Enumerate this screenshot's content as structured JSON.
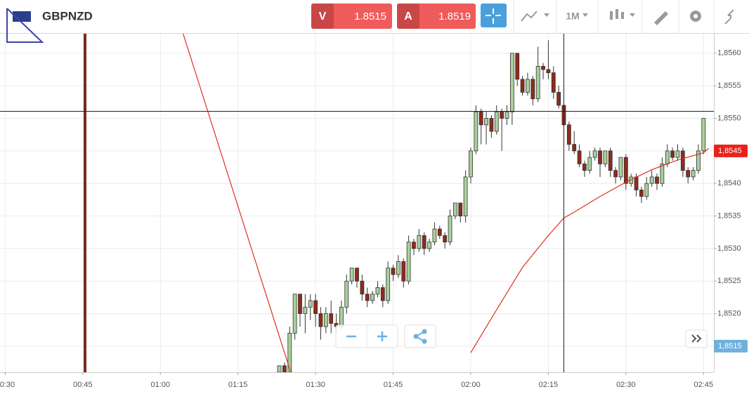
{
  "toolbar": {
    "symbol": "GBPNZD",
    "sell_label": "V",
    "sell_price": "1.8515",
    "buy_label": "A",
    "buy_price": "1.8519",
    "timeframe": "1M"
  },
  "chart_data": {
    "type": "candlestick",
    "x": [
      "01:23",
      "01:24",
      "01:25",
      "01:26",
      "01:27",
      "01:28",
      "01:29",
      "01:30",
      "01:31",
      "01:32",
      "01:33",
      "01:34",
      "01:35",
      "01:36",
      "01:37",
      "01:38",
      "01:39",
      "01:40",
      "01:41",
      "01:42",
      "01:43",
      "01:44",
      "01:45",
      "01:46",
      "01:47",
      "01:48",
      "01:49",
      "01:50",
      "01:51",
      "01:52",
      "01:53",
      "01:54",
      "01:55",
      "01:56",
      "01:57",
      "01:58",
      "01:59",
      "02:00",
      "02:01",
      "02:02",
      "02:03",
      "02:04",
      "02:05",
      "02:06",
      "02:07",
      "02:08",
      "02:09",
      "02:10",
      "02:11",
      "02:12",
      "02:13",
      "02:14",
      "02:15",
      "02:16",
      "02:17",
      "02:18",
      "02:19",
      "02:20",
      "02:21",
      "02:22",
      "02:23",
      "02:24",
      "02:25",
      "02:26",
      "02:27",
      "02:28",
      "02:29",
      "02:30",
      "02:31",
      "02:32",
      "02:33",
      "02:34",
      "02:35",
      "02:36",
      "02:37",
      "02:38",
      "02:39",
      "02:40",
      "02:41",
      "02:42",
      "02:43",
      "02:44",
      "02:45"
    ],
    "open": [
      1.8511,
      1.8512,
      1.8511,
      1.8517,
      1.8523,
      1.852,
      1.8521,
      1.8522,
      1.852,
      1.8518,
      1.852,
      1.85185,
      1.8518,
      1.8521,
      1.8525,
      1.8527,
      1.8525,
      1.8523,
      1.8522,
      1.8523,
      1.8524,
      1.8522,
      1.8527,
      1.8526,
      1.8528,
      1.8525,
      1.8531,
      1.853,
      1.8532,
      1.853,
      1.8531,
      1.8533,
      1.8532,
      1.8531,
      1.8535,
      1.8537,
      1.8535,
      1.8541,
      1.8545,
      1.8551,
      1.8549,
      1.855,
      1.8548,
      1.8551,
      1.855,
      1.8551,
      1.856,
      1.8556,
      1.8554,
      1.8556,
      1.8553,
      1.8558,
      1.85575,
      1.8557,
      1.8554,
      1.8552,
      1.8549,
      1.8546,
      1.8545,
      1.8543,
      1.8542,
      1.8544,
      1.8545,
      1.8543,
      1.8545,
      1.8542,
      1.8541,
      1.8544,
      1.854,
      1.8541,
      1.8539,
      1.8538,
      1.854,
      1.8541,
      1.854,
      1.8543,
      1.8545,
      1.8544,
      1.8545,
      1.8542,
      1.8541,
      1.8542,
      1.8545
    ],
    "high": [
      1.8512,
      1.85125,
      1.8518,
      1.8523,
      1.8523,
      1.8523,
      1.8523,
      1.8523,
      1.8521,
      1.8521,
      1.8522,
      1.852,
      1.8522,
      1.8526,
      1.8527,
      1.8527,
      1.8526,
      1.8524,
      1.85235,
      1.8525,
      1.85245,
      1.8528,
      1.85275,
      1.8529,
      1.85285,
      1.8532,
      1.85315,
      1.8533,
      1.85325,
      1.85315,
      1.8534,
      1.85335,
      1.85325,
      1.8536,
      1.8537,
      1.8537,
      1.8542,
      1.85455,
      1.8552,
      1.85515,
      1.8551,
      1.85505,
      1.8552,
      1.85515,
      1.8552,
      1.856,
      1.856,
      1.85565,
      1.8557,
      1.85565,
      1.8561,
      1.85585,
      1.8562,
      1.8558,
      1.8555,
      1.8553,
      1.85495,
      1.8548,
      1.8546,
      1.85435,
      1.8545,
      1.85455,
      1.85455,
      1.8545,
      1.85455,
      1.85425,
      1.8544,
      1.85445,
      1.85415,
      1.85415,
      1.85395,
      1.8541,
      1.8542,
      1.85415,
      1.8544,
      1.8546,
      1.85455,
      1.8546,
      1.85455,
      1.85425,
      1.85425,
      1.8546,
      1.855
    ],
    "low": [
      1.85105,
      1.85105,
      1.851,
      1.8516,
      1.8518,
      1.8517,
      1.8519,
      1.8518,
      1.8516,
      1.8517,
      1.8517,
      1.8517,
      1.85175,
      1.852,
      1.85245,
      1.8524,
      1.8522,
      1.8521,
      1.85215,
      1.85225,
      1.8521,
      1.85215,
      1.8525,
      1.85255,
      1.8524,
      1.85245,
      1.8529,
      1.85295,
      1.8529,
      1.85295,
      1.85305,
      1.85315,
      1.853,
      1.85305,
      1.85345,
      1.8534,
      1.8534,
      1.854,
      1.85445,
      1.8546,
      1.8546,
      1.8547,
      1.85475,
      1.8545,
      1.8549,
      1.8549,
      1.8555,
      1.85535,
      1.85535,
      1.8552,
      1.85525,
      1.8556,
      1.8556,
      1.8553,
      1.85515,
      1.85485,
      1.8545,
      1.85445,
      1.85425,
      1.8541,
      1.85415,
      1.85435,
      1.8541,
      1.85425,
      1.8541,
      1.854,
      1.85405,
      1.8539,
      1.85395,
      1.8538,
      1.8537,
      1.85375,
      1.85395,
      1.8539,
      1.85395,
      1.85425,
      1.85435,
      1.85435,
      1.8541,
      1.854,
      1.85405,
      1.85415,
      1.85445
    ],
    "close": [
      1.8512,
      1.8511,
      1.8517,
      1.8523,
      1.852,
      1.8521,
      1.8522,
      1.852,
      1.8518,
      1.852,
      1.85185,
      1.8518,
      1.8521,
      1.8525,
      1.8527,
      1.8525,
      1.8523,
      1.8522,
      1.8523,
      1.8524,
      1.8522,
      1.8527,
      1.8526,
      1.8528,
      1.8525,
      1.8531,
      1.853,
      1.8532,
      1.853,
      1.8531,
      1.8533,
      1.8532,
      1.8531,
      1.8535,
      1.8537,
      1.8535,
      1.8541,
      1.8545,
      1.8551,
      1.8549,
      1.855,
      1.8548,
      1.8551,
      1.855,
      1.8551,
      1.856,
      1.8556,
      1.8554,
      1.8556,
      1.8553,
      1.8558,
      1.85575,
      1.8557,
      1.8554,
      1.8552,
      1.8549,
      1.8546,
      1.8545,
      1.8543,
      1.8542,
      1.8544,
      1.8545,
      1.8543,
      1.8545,
      1.8542,
      1.8541,
      1.8544,
      1.854,
      1.8541,
      1.8539,
      1.8538,
      1.854,
      1.8541,
      1.854,
      1.8543,
      1.8545,
      1.8544,
      1.8545,
      1.8542,
      1.8541,
      1.8542,
      1.8545,
      1.855
    ],
    "up_color": "#a9d19b",
    "down_color": "#8e2b1c",
    "overlay": {
      "color": "#e0301e",
      "x": [
        "01:04",
        "01:26",
        "01:55",
        "02:00",
        "02:05",
        "02:10",
        "02:15",
        "02:18",
        "02:20",
        "02:25",
        "02:30",
        "02:35",
        "02:40",
        "02:45",
        "02:46"
      ],
      "values": [
        1.8564,
        1.8509,
        null,
        1.8514,
        1.85206,
        1.85271,
        1.8532,
        1.85347,
        1.85356,
        1.8538,
        1.85402,
        1.85421,
        1.85436,
        1.85447,
        1.85454
      ]
    },
    "xlim": [
      "00:29",
      "02:47"
    ],
    "xticks": [
      "00:30",
      "00:45",
      "01:00",
      "01:15",
      "01:30",
      "01:45",
      "02:00",
      "02:15",
      "02:30",
      "02:45"
    ],
    "ylim": [
      1.8511,
      1.8563
    ],
    "yticks": [
      {
        "value": 1.8515,
        "label": "1,8515"
      },
      {
        "value": 1.852,
        "label": "1,8520"
      },
      {
        "value": 1.8525,
        "label": "1,8525"
      },
      {
        "value": 1.853,
        "label": "1,8530"
      },
      {
        "value": 1.8535,
        "label": "1,8535"
      },
      {
        "value": 1.854,
        "label": "1,8540"
      },
      {
        "value": 1.8545,
        "label": "1,8545"
      },
      {
        "value": 1.855,
        "label": "1,8550"
      },
      {
        "value": 1.8555,
        "label": "1,8555"
      },
      {
        "value": 1.856,
        "label": "1,8560"
      }
    ],
    "grid": true,
    "price_labels": [
      {
        "value": 1.8545,
        "label": "1,8545",
        "color": "#e8221b"
      },
      {
        "value": 1.8515,
        "label": "1,8515",
        "color": "#6fb0dd"
      }
    ]
  }
}
